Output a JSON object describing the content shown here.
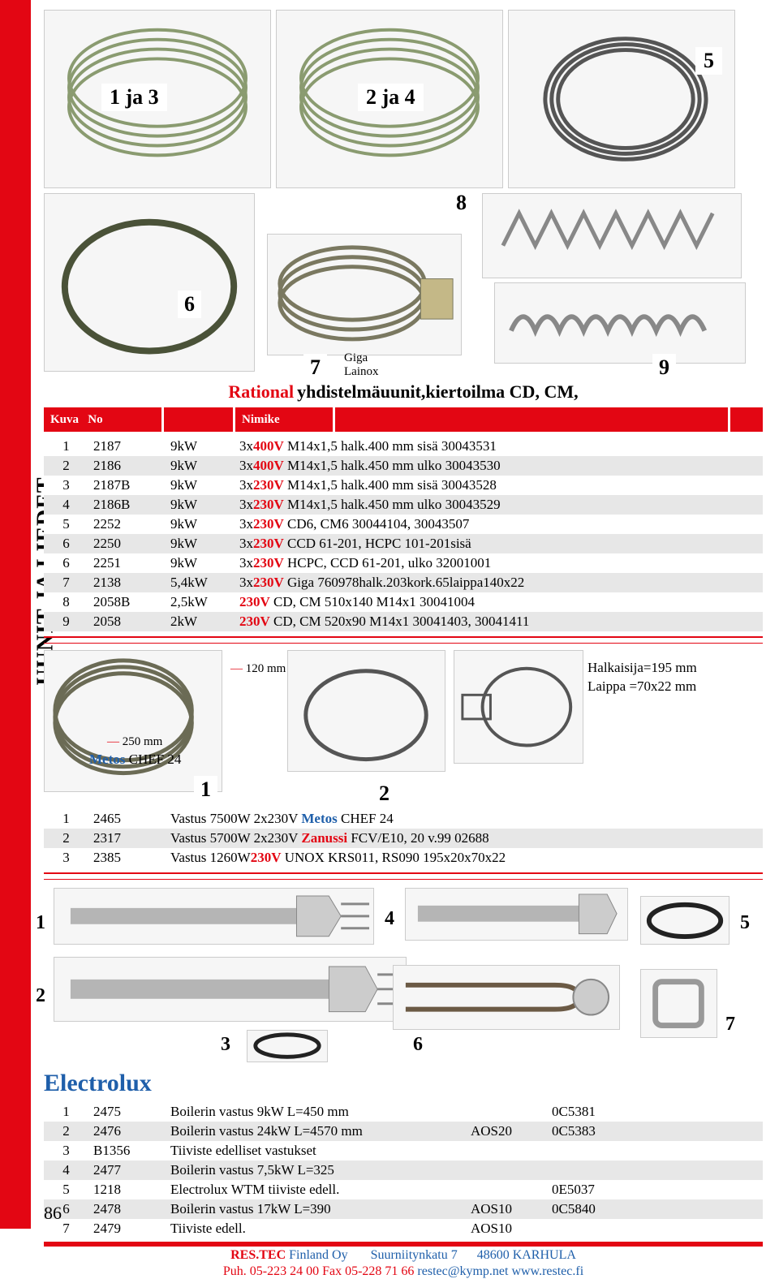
{
  "sidebar_text": "UUNIT JA LIEDET",
  "top_images": {
    "labels": [
      "1 ja 3",
      "2 ja 4",
      "5"
    ],
    "row2_labels": [
      "6",
      "7",
      "8",
      "9"
    ],
    "giga": "Giga",
    "lainox": "Lainox"
  },
  "section1": {
    "brand": "Rational",
    "subtitle": " yhdistelmäuunit,kiertoilma CD, CM,"
  },
  "table_headers": {
    "kuva": "Kuva",
    "no": "No",
    "nimike": "Nimike"
  },
  "table1": [
    {
      "idx": "1",
      "no": "2187",
      "pw": "9kW",
      "desc_pre": "3x",
      "v": "400V",
      "desc_post": " M14x1,5 halk.400 mm sisä 30043531"
    },
    {
      "idx": "2",
      "no": "2186",
      "pw": "9kW",
      "desc_pre": "3x",
      "v": "400V",
      "desc_post": " M14x1,5 halk.450 mm ulko 30043530"
    },
    {
      "idx": "3",
      "no": "2187B",
      "pw": "9kW",
      "desc_pre": "3x",
      "v": "230V",
      "desc_post": " M14x1,5 halk.400 mm sisä 30043528"
    },
    {
      "idx": "4",
      "no": "2186B",
      "pw": "9kW",
      "desc_pre": "3x",
      "v": "230V",
      "desc_post": " M14x1,5 halk.450 mm ulko 30043529"
    },
    {
      "idx": "5",
      "no": "2252",
      "pw": "9kW",
      "desc_pre": "3x",
      "v": "230V",
      "desc_post": " CD6, CM6 30044104, 30043507"
    },
    {
      "idx": "6",
      "no": "2250",
      "pw": "9kW",
      "desc_pre": "3x",
      "v": "230V",
      "desc_post": " CCD 61-201, HCPC 101-201sisä"
    },
    {
      "idx": "6",
      "no": "2251",
      "pw": "9kW",
      "desc_pre": "3x",
      "v": "230V",
      "desc_post": " HCPC, CCD 61-201, ulko 32001001"
    },
    {
      "idx": "7",
      "no": "2138",
      "pw": "5,4kW",
      "desc_pre": "3x",
      "v": "230V",
      "desc_post": " Giga 760978halk.203kork.65laippa140x22"
    },
    {
      "idx": "8",
      "no": "2058B",
      "pw": "2,5kW",
      "desc_pre": "",
      "v": "230V",
      "desc_post": " CD, CM 510x140 M14x1   30041004"
    },
    {
      "idx": "9",
      "no": "2058",
      "pw": "2kW",
      "desc_pre": "",
      "v": "230V",
      "desc_post": " CD, CM 520x90 M14x1 30041403, 30041411"
    }
  ],
  "mid_images": {
    "metos_250": "250 mm",
    "metos_brand": "Metos",
    "metos_chef": " CHEF 24",
    "dim_120": "120 mm",
    "halkaisija": "Halkaisija=195 mm",
    "laippa": "Laippa   =70x22 mm",
    "labels": [
      "1",
      "2"
    ]
  },
  "table2": [
    {
      "idx": "1",
      "no": "2465",
      "desc": "Vastus 7500W 2x230V   ",
      "brand": "Metos",
      "model": " CHEF 24"
    },
    {
      "idx": "2",
      "no": "2317",
      "desc": "Vastus 5700W 2x230V    ",
      "brand": "Zanussi",
      "model": " FCV/E10, 20 v.99 02688"
    },
    {
      "idx": "3",
      "no": "2385",
      "desc": "Vastus 1260W",
      "v": "230V",
      "model": " UNOX KRS011, RS090 195x20x70x22"
    }
  ],
  "electrolux": {
    "brand": "Electrolux",
    "labels": [
      "1",
      "2",
      "3",
      "4",
      "5",
      "6",
      "7"
    ]
  },
  "table3": [
    {
      "idx": "1",
      "no": "2475",
      "desc": "Boilerin vastus 9kW    L=450 mm",
      "c1": "",
      "c2": "0C5381"
    },
    {
      "idx": "2",
      "no": "2476",
      "desc": "Boilerin vastus 24kW   L=4570 mm",
      "c1": "AOS20",
      "c2": "0C5383"
    },
    {
      "idx": "3",
      "no": "B1356",
      "desc": "Tiiviste edelliset vastukset",
      "c1": "",
      "c2": ""
    },
    {
      "idx": "4",
      "no": "2477",
      "desc": "Boilerin vastus 7,5kW   L=325",
      "c1": "",
      "c2": ""
    },
    {
      "idx": "5",
      "no": "1218",
      "desc": "Electrolux WTM tiiviste edell.",
      "c1": "",
      "c2": "0E5037"
    },
    {
      "idx": "6",
      "no": "2478",
      "desc": "Boilerin vastus 17kW  L=390",
      "c1": "AOS10",
      "c2": "0C5840"
    },
    {
      "idx": "7",
      "no": "2479",
      "desc": "Tiiviste edell.",
      "c1": "AOS10",
      "c2": ""
    }
  ],
  "footer": {
    "company": "RES.TEC",
    "suffix": "  Finland Oy",
    "address": "Suurniitynkatu 7",
    "postal": "48600 KARHULA",
    "line2_pre": "Puh. 05-223 24 00 Fax 05-228 71 66 ",
    "email": "restec@kymp.net",
    "web": " www.restec.fi"
  },
  "page_number": "86"
}
